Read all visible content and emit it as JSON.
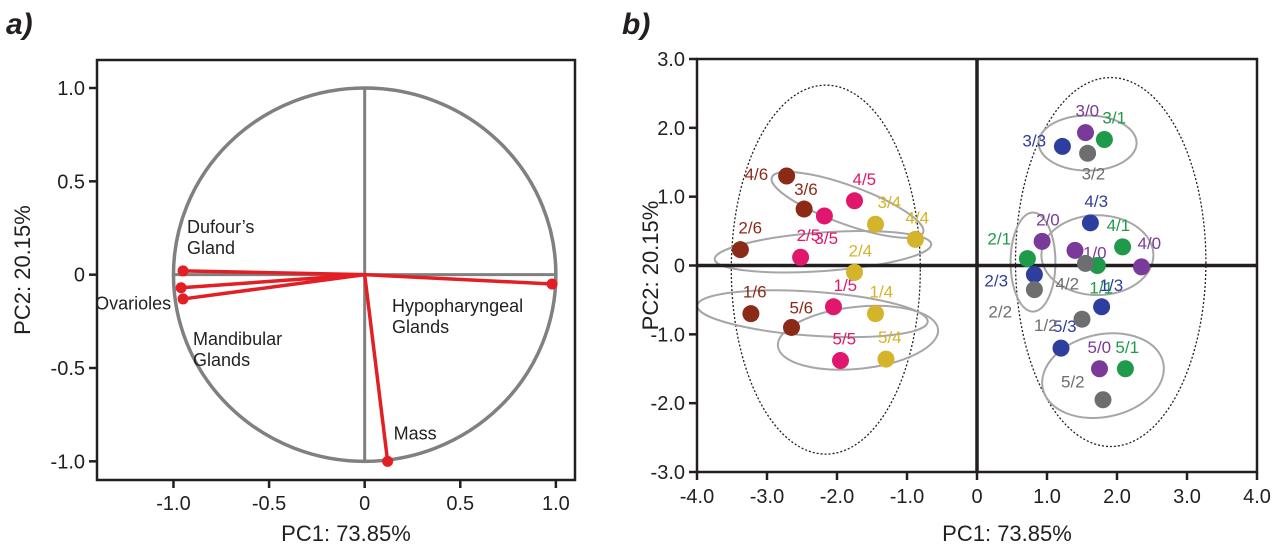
{
  "colors": {
    "axis": "#231f20",
    "circle": "#808080",
    "vector": "#e31e24",
    "ellipse": "#a6a6a6",
    "group_colors": {
      "brown": "#8b2a16",
      "pink": "#e0176c",
      "gold": "#d4b42a",
      "purple": "#7a3a9a",
      "green": "#1f9a4a",
      "blue": "#2e3e9e",
      "gray": "#6d6e70"
    }
  },
  "chart_data": [
    {
      "panel": "a)",
      "type": "scatter",
      "subtype": "pca-loading-plot",
      "xlabel": "PC1: 73.85%",
      "ylabel": "PC2: 20.15%",
      "xlim": [
        -1.4,
        1.1
      ],
      "ylim": [
        -1.1,
        1.15
      ],
      "xticks": [
        -1.0,
        -0.5,
        0,
        0.5,
        1.0
      ],
      "xtick_labels": [
        "-1.0",
        "-0.5",
        "0",
        "0.5",
        "1.0"
      ],
      "yticks": [
        -1.0,
        -0.5,
        0,
        0.5,
        1.0
      ],
      "ytick_labels": [
        "-1.0",
        "-0.5",
        "0",
        "0.5",
        "1.0"
      ],
      "unit_circle": true,
      "vectors": [
        {
          "name": "Dufour's Gland",
          "label_lines": [
            "Dufour’s",
            "Gland"
          ],
          "x": -0.95,
          "y": 0.02
        },
        {
          "name": "Ovarioles",
          "label_lines": [
            "Ovarioles"
          ],
          "x": -0.96,
          "y": -0.07
        },
        {
          "name": "Mandibular Glands",
          "label_lines": [
            "Mandibular",
            "Glands"
          ],
          "x": -0.95,
          "y": -0.13
        },
        {
          "name": "Hypopharyngeal Glands",
          "label_lines": [
            "Hypopharyngeal",
            "Glands"
          ],
          "x": 0.98,
          "y": -0.05
        },
        {
          "name": "Mass",
          "label_lines": [
            "Mass"
          ],
          "x": 0.12,
          "y": -1.0
        }
      ]
    },
    {
      "panel": "b)",
      "type": "scatter",
      "subtype": "pca-score-plot",
      "xlabel": "PC1: 73.85%",
      "ylabel": "PC2: 20.15%",
      "xlim": [
        -4.0,
        4.0
      ],
      "ylim": [
        -3.0,
        3.0
      ],
      "xticks": [
        -4.0,
        -3.0,
        -2.0,
        -1.0,
        0,
        1.0,
        2.0,
        3.0,
        4.0
      ],
      "xtick_labels": [
        "-4.0",
        "-3.0",
        "-2.0",
        "-1.0",
        "0",
        "1.0",
        "2.0",
        "3.0",
        "4.0"
      ],
      "yticks": [
        -3.0,
        -2.0,
        -1.0,
        0,
        1.0,
        2.0,
        3.0
      ],
      "ytick_labels": [
        "-3.0",
        "-2.0",
        "-1.0",
        "0",
        "1.0",
        "2.0",
        "3.0"
      ],
      "points": [
        {
          "label": "4/6",
          "x": -2.72,
          "y": 1.3,
          "color": "brown"
        },
        {
          "label": "3/6",
          "x": -2.47,
          "y": 0.82,
          "color": "brown"
        },
        {
          "label": "2/6",
          "x": -3.38,
          "y": 0.23,
          "color": "brown"
        },
        {
          "label": "1/6",
          "x": -3.23,
          "y": -0.7,
          "color": "brown"
        },
        {
          "label": "5/6",
          "x": -2.65,
          "y": -0.9,
          "color": "brown"
        },
        {
          "label": "4/5",
          "x": -1.75,
          "y": 0.94,
          "color": "pink"
        },
        {
          "label": "3/5",
          "x": -2.18,
          "y": 0.72,
          "color": "pink"
        },
        {
          "label": "2/5",
          "x": -2.52,
          "y": 0.12,
          "color": "pink"
        },
        {
          "label": "1/5",
          "x": -2.05,
          "y": -0.6,
          "color": "pink"
        },
        {
          "label": "5/5",
          "x": -1.95,
          "y": -1.38,
          "color": "pink"
        },
        {
          "label": "3/4",
          "x": -1.45,
          "y": 0.6,
          "color": "gold"
        },
        {
          "label": "4/4",
          "x": -0.88,
          "y": 0.38,
          "color": "gold"
        },
        {
          "label": "2/4",
          "x": -1.75,
          "y": -0.1,
          "color": "gold"
        },
        {
          "label": "1/4",
          "x": -1.45,
          "y": -0.7,
          "color": "gold"
        },
        {
          "label": "5/4",
          "x": -1.3,
          "y": -1.36,
          "color": "gold"
        },
        {
          "label": "3/0",
          "x": 1.55,
          "y": 1.93,
          "color": "purple"
        },
        {
          "label": "2/0",
          "x": 0.93,
          "y": 0.35,
          "color": "purple"
        },
        {
          "label": "1/0",
          "x": 1.4,
          "y": 0.22,
          "color": "purple"
        },
        {
          "label": "4/0",
          "x": 2.35,
          "y": -0.02,
          "color": "purple"
        },
        {
          "label": "5/0",
          "x": 1.75,
          "y": -1.5,
          "color": "purple"
        },
        {
          "label": "3/1",
          "x": 1.82,
          "y": 1.83,
          "color": "green"
        },
        {
          "label": "4/1",
          "x": 2.08,
          "y": 0.27,
          "color": "green"
        },
        {
          "label": "2/1",
          "x": 0.72,
          "y": 0.1,
          "color": "green"
        },
        {
          "label": "1/1",
          "x": 1.72,
          "y": 0.0,
          "color": "green"
        },
        {
          "label": "5/1",
          "x": 2.12,
          "y": -1.5,
          "color": "green"
        },
        {
          "label": "3/3",
          "x": 1.22,
          "y": 1.73,
          "color": "blue"
        },
        {
          "label": "4/3",
          "x": 1.62,
          "y": 0.62,
          "color": "blue"
        },
        {
          "label": "2/3",
          "x": 0.82,
          "y": -0.13,
          "color": "blue"
        },
        {
          "label": "1/3",
          "x": 1.78,
          "y": -0.6,
          "color": "blue"
        },
        {
          "label": "5/3",
          "x": 1.2,
          "y": -1.2,
          "color": "blue"
        },
        {
          "label": "3/2",
          "x": 1.58,
          "y": 1.63,
          "color": "gray"
        },
        {
          "label": "4/2",
          "x": 1.55,
          "y": 0.03,
          "color": "gray"
        },
        {
          "label": "2/2",
          "x": 0.82,
          "y": -0.35,
          "color": "gray"
        },
        {
          "label": "1/2",
          "x": 1.5,
          "y": -0.78,
          "color": "gray"
        },
        {
          "label": "5/2",
          "x": 1.8,
          "y": -1.95,
          "color": "gray"
        }
      ]
    }
  ]
}
